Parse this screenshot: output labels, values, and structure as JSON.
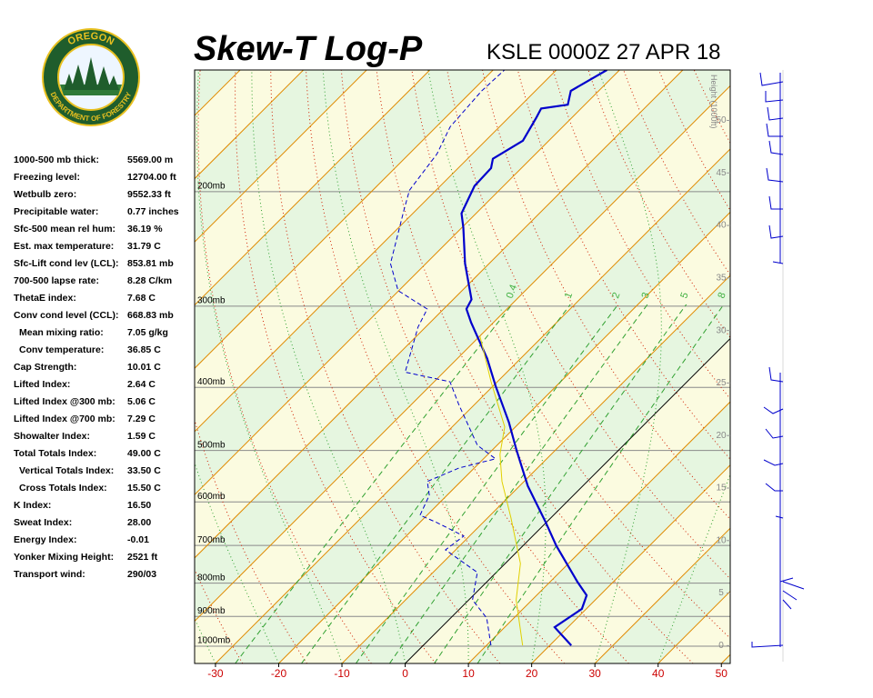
{
  "logo": {
    "top": "OREGON",
    "bottom": "DEPARTMENT OF FORESTRY"
  },
  "stats": [
    {
      "label": "1000-500 mb thick:",
      "value": "5569.00 m"
    },
    {
      "label": "Freezing level:",
      "value": "12704.00 ft"
    },
    {
      "label": "Wetbulb zero:",
      "value": "9552.33 ft"
    },
    {
      "label": "Precipitable water:",
      "value": "0.77 inches"
    },
    {
      "label": "Sfc-500 mean rel hum:",
      "value": "36.19 %"
    },
    {
      "label": "Est. max temperature:",
      "value": "31.79 C"
    },
    {
      "label": "Sfc-Lift cond lev (LCL):",
      "value": "853.81 mb"
    },
    {
      "label": "700-500 lapse rate:",
      "value": "8.28 C/km"
    },
    {
      "label": "ThetaE index:",
      "value": "7.68 C"
    },
    {
      "label": "Conv cond level (CCL):",
      "value": "668.83 mb"
    },
    {
      "label": "Mean mixing ratio:",
      "value": "7.05 g/kg"
    },
    {
      "label": "Conv temperature:",
      "value": "36.85 C"
    },
    {
      "label": "Cap Strength:",
      "value": "10.01 C"
    },
    {
      "label": "Lifted Index:",
      "value": "2.64 C"
    },
    {
      "label": "Lifted Index @300 mb:",
      "value": "5.06 C"
    },
    {
      "label": "Lifted Index @700 mb:",
      "value": "7.29 C"
    },
    {
      "label": "Showalter Index:",
      "value": "1.59 C"
    },
    {
      "label": "Total Totals Index:",
      "value": "49.00 C"
    },
    {
      "label": "Vertical Totals Index:",
      "value": "33.50 C"
    },
    {
      "label": "Cross Totals Index:",
      "value": "15.50 C"
    },
    {
      "label": "K Index:",
      "value": "16.50"
    },
    {
      "label": "Sweat Index:",
      "value": "28.00"
    },
    {
      "label": "Energy Index:",
      "value": "-0.01"
    },
    {
      "label": "Yonker Mixing Height:",
      "value": "2521 ft"
    },
    {
      "label": "Transport wind:",
      "value": "290/03"
    }
  ],
  "chart_data": {
    "type": "skewt",
    "title": "Skew-T Log-P",
    "subtitle": "KSLE 0000Z 27 APR 18",
    "y2label": "Height (1000ft)",
    "xlim": [
      -33.3,
      51.4
    ],
    "xticks": [
      -30,
      -20,
      -10,
      0,
      10,
      20,
      30,
      40,
      50
    ],
    "ylim": [
      1063,
      130
    ],
    "log_y": true,
    "grid": true,
    "yticks": [
      {
        "value": 1000,
        "label": "1000mb"
      },
      {
        "value": 900,
        "label": "900mb"
      },
      {
        "value": 800,
        "label": "800mb"
      },
      {
        "value": 700,
        "label": "700mb"
      },
      {
        "value": 600,
        "label": "600mb"
      },
      {
        "value": 500,
        "label": "500mb"
      },
      {
        "value": 400,
        "label": "400mb"
      },
      {
        "value": 300,
        "label": "300mb"
      },
      {
        "value": 200,
        "label": "200mb"
      }
    ],
    "y2lim": [
      -1.7,
      54.8
    ],
    "y2ticks": [
      0,
      5,
      10,
      15,
      20,
      25,
      30,
      35,
      40,
      45,
      50
    ],
    "mixing_ratios": [
      0.4,
      1,
      2,
      3,
      5,
      8
    ],
    "series": [
      {
        "color": "#0000cc",
        "style": "solid",
        "pressure": [
          997,
          935,
          876,
          835,
          796,
          700,
          645,
          567,
          499,
          453,
          398,
          361,
          318,
          303,
          293,
          258,
          227,
          216,
          196,
          184,
          178,
          167,
          154,
          149,
          147,
          140,
          130
        ],
        "values": [
          23.4,
          17.9,
          19.3,
          17.9,
          14.3,
          5.2,
          -0.1,
          -8.7,
          -16.2,
          -21.7,
          -29.6,
          -35.3,
          -43.5,
          -46.4,
          -47.1,
          -53.8,
          -59.8,
          -62.3,
          -64.6,
          -64.8,
          -66.0,
          -64.1,
          -65.6,
          -66.3,
          -62.7,
          -64.4,
          -62.0
        ]
      },
      {
        "color": "#0000cc",
        "style": "dashed",
        "pressure": [
          997,
          905,
          849,
          770,
          711,
          677,
          645,
          629,
          586,
          558,
          532,
          515,
          491,
          425,
          392,
          379,
          323,
          303,
          284,
          258,
          213,
          199,
          175,
          159,
          140,
          130
        ],
        "values": [
          10.7,
          5.7,
          0.6,
          -3.0,
          -11.6,
          -10.9,
          -17.4,
          -21.1,
          -22.8,
          -25.3,
          -22.4,
          -18.1,
          -23.1,
          -32.5,
          -37.5,
          -46.1,
          -51.2,
          -52.6,
          -60.1,
          -65.6,
          -72.0,
          -74.2,
          -75.6,
          -77.8,
          -78.5,
          -78.2
        ]
      },
      {
        "color": "#e0d000",
        "style": "solid",
        "pressure": [
          997,
          849,
          746,
          635,
          558,
          507,
          460,
          392,
          334
        ],
        "values": [
          15.7,
          7.5,
          2.4,
          -6.3,
          -13.5,
          -18.1,
          -21.7,
          -31.0,
          -39.9
        ]
      }
    ]
  }
}
